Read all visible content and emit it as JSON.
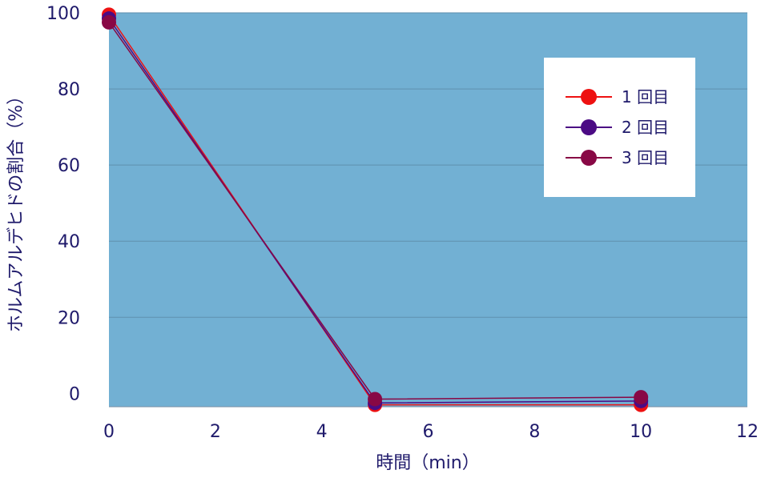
{
  "chart_data": {
    "type": "line",
    "xlabel": "時間（min）",
    "ylabel": "ホルムアルデヒドの割合（%）",
    "xlim": [
      0,
      12
    ],
    "ylim": [
      -3.5,
      100
    ],
    "xticks": [
      "0",
      "2",
      "4",
      "6",
      "8",
      "10",
      "12"
    ],
    "yticks": [
      "0",
      "20",
      "40",
      "60",
      "80",
      "100"
    ],
    "grid": true,
    "legend_position": "top-right",
    "plot_background": "#72b0d3",
    "series": [
      {
        "name": "1 回目",
        "color": "#ee1111",
        "x": [
          0,
          5,
          10
        ],
        "y": [
          99.5,
          -3,
          -3
        ]
      },
      {
        "name": "2 回目",
        "color": "#4b0b84",
        "x": [
          0,
          5,
          10
        ],
        "y": [
          98.5,
          -2.5,
          -2
        ]
      },
      {
        "name": "3 回目",
        "color": "#880845",
        "x": [
          0,
          5,
          10
        ],
        "y": [
          97.5,
          -1.5,
          -1
        ]
      }
    ]
  }
}
